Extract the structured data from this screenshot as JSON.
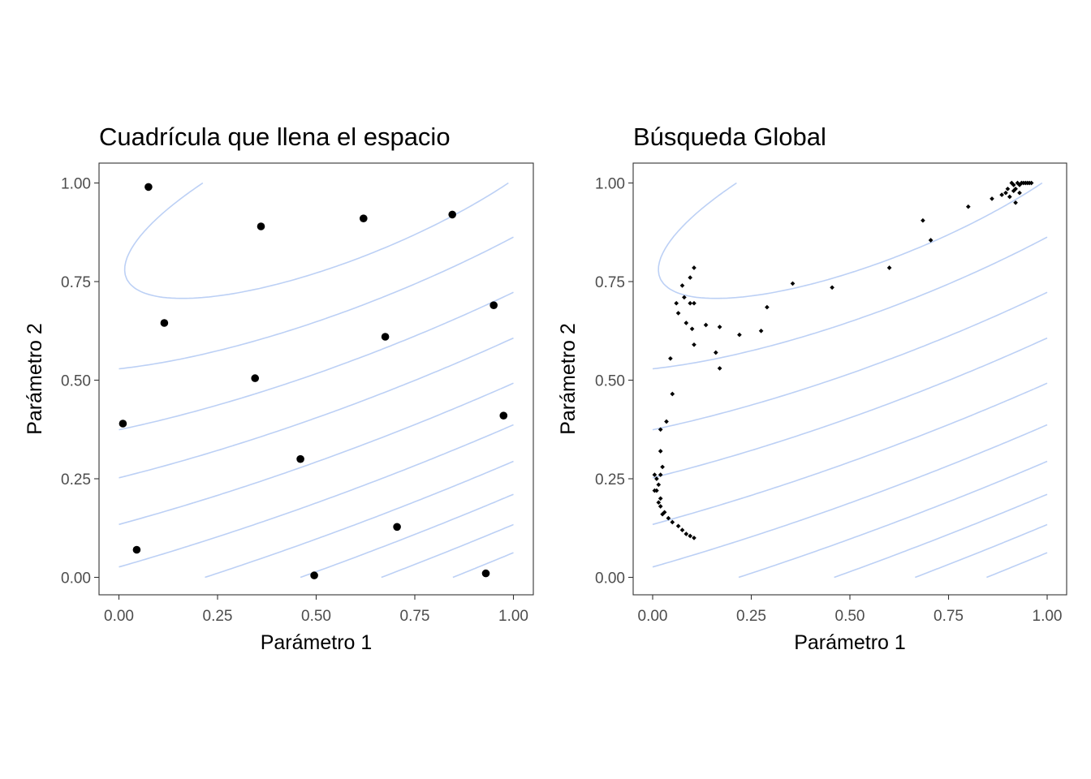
{
  "colors": {
    "background": "#ffffff",
    "contour": "#bcd0f5",
    "points": "#000000",
    "frame": "#333333",
    "tick_text": "#4d4d4d"
  },
  "chart_data": [
    {
      "type": "scatter",
      "title": "Cuadrícula que llena el espacio",
      "xlabel": "Parámetro 1",
      "ylabel": "Parámetro 2",
      "xlim": [
        -0.05,
        1.05
      ],
      "ylim": [
        -0.05,
        1.05
      ],
      "xticks": [
        "0.00",
        "0.25",
        "0.50",
        "0.75",
        "1.00"
      ],
      "yticks": [
        "0.00",
        "0.25",
        "0.50",
        "0.75",
        "1.00"
      ],
      "grid": false,
      "background_contours": true,
      "point_size": "large",
      "series": [
        {
          "points": [
            [
              0.075,
              0.99
            ],
            [
              0.36,
              0.89
            ],
            [
              0.62,
              0.91
            ],
            [
              0.845,
              0.92
            ],
            [
              0.115,
              0.645
            ],
            [
              0.95,
              0.69
            ],
            [
              0.675,
              0.61
            ],
            [
              0.345,
              0.505
            ],
            [
              0.01,
              0.39
            ],
            [
              0.975,
              0.41
            ],
            [
              0.46,
              0.3
            ],
            [
              0.045,
              0.07
            ],
            [
              0.705,
              0.128
            ],
            [
              0.495,
              0.005
            ],
            [
              0.93,
              0.01
            ]
          ]
        }
      ]
    },
    {
      "type": "scatter",
      "title": "Búsqueda Global",
      "xlabel": "Parámetro 1",
      "ylabel": "Parámetro 2",
      "xlim": [
        -0.05,
        1.05
      ],
      "ylim": [
        -0.05,
        1.05
      ],
      "xticks": [
        "0.00",
        "0.25",
        "0.50",
        "0.75",
        "1.00"
      ],
      "yticks": [
        "0.00",
        "0.25",
        "0.50",
        "0.75",
        "1.00"
      ],
      "grid": false,
      "background_contours": true,
      "point_size": "small",
      "series": [
        {
          "points": [
            [
              0.105,
              0.1
            ],
            [
              0.095,
              0.105
            ],
            [
              0.085,
              0.11
            ],
            [
              0.075,
              0.12
            ],
            [
              0.065,
              0.13
            ],
            [
              0.05,
              0.14
            ],
            [
              0.04,
              0.15
            ],
            [
              0.025,
              0.16
            ],
            [
              0.03,
              0.165
            ],
            [
              0.02,
              0.18
            ],
            [
              0.015,
              0.19
            ],
            [
              0.02,
              0.2
            ],
            [
              0.01,
              0.22
            ],
            [
              0.005,
              0.22
            ],
            [
              0.015,
              0.235
            ],
            [
              0.01,
              0.25
            ],
            [
              0.02,
              0.26
            ],
            [
              0.005,
              0.26
            ],
            [
              0.025,
              0.28
            ],
            [
              0.02,
              0.32
            ],
            [
              0.02,
              0.375
            ],
            [
              0.035,
              0.395
            ],
            [
              0.05,
              0.465
            ],
            [
              0.045,
              0.555
            ],
            [
              0.105,
              0.59
            ],
            [
              0.065,
              0.67
            ],
            [
              0.06,
              0.695
            ],
            [
              0.085,
              0.645
            ],
            [
              0.08,
              0.71
            ],
            [
              0.095,
              0.695
            ],
            [
              0.105,
              0.695
            ],
            [
              0.075,
              0.74
            ],
            [
              0.095,
              0.76
            ],
            [
              0.105,
              0.785
            ],
            [
              0.1,
              0.63
            ],
            [
              0.135,
              0.64
            ],
            [
              0.16,
              0.57
            ],
            [
              0.17,
              0.53
            ],
            [
              0.17,
              0.635
            ],
            [
              0.22,
              0.615
            ],
            [
              0.275,
              0.625
            ],
            [
              0.29,
              0.685
            ],
            [
              0.355,
              0.745
            ],
            [
              0.455,
              0.735
            ],
            [
              0.6,
              0.785
            ],
            [
              0.685,
              0.905
            ],
            [
              0.705,
              0.855
            ],
            [
              0.8,
              0.94
            ],
            [
              0.86,
              0.96
            ],
            [
              0.885,
              0.97
            ],
            [
              0.895,
              0.975
            ],
            [
              0.905,
              0.965
            ],
            [
              0.92,
              0.95
            ],
            [
              0.9,
              0.985
            ],
            [
              0.91,
              1.0
            ],
            [
              0.915,
              0.995
            ],
            [
              0.925,
              1.0
            ],
            [
              0.93,
              0.995
            ],
            [
              0.935,
              1.0
            ],
            [
              0.94,
              1.0
            ],
            [
              0.945,
              1.0
            ],
            [
              0.95,
              1.0
            ],
            [
              0.955,
              1.0
            ],
            [
              0.96,
              1.0
            ],
            [
              0.92,
              0.985
            ],
            [
              0.93,
              0.975
            ],
            [
              0.915,
              0.98
            ]
          ]
        }
      ]
    }
  ]
}
